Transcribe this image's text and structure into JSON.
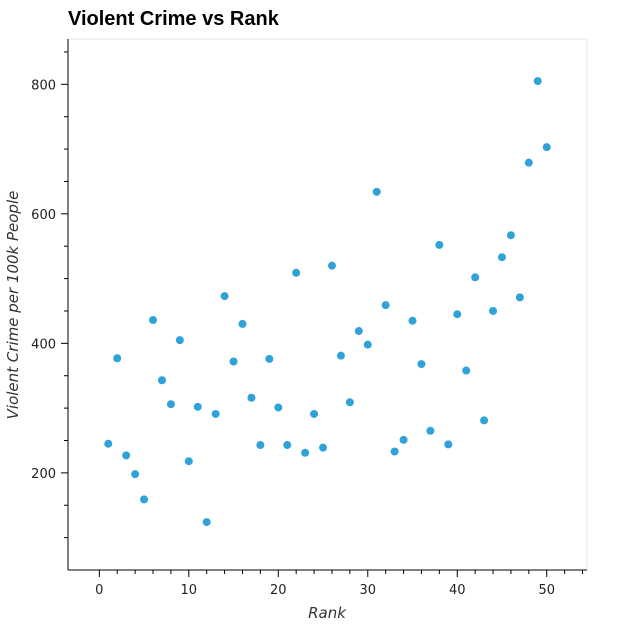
{
  "chart_data": {
    "type": "scatter",
    "title": "Violent Crime vs Rank",
    "xlabel": "Rank",
    "ylabel": "Violent Crime per 100k People",
    "xlim": [
      -3.5,
      54.5
    ],
    "ylim": [
      50,
      870
    ],
    "x_ticks": [
      0,
      10,
      20,
      30,
      40,
      50
    ],
    "y_ticks": [
      200,
      400,
      600,
      800
    ],
    "grid": false,
    "point_color": "#30a2da",
    "points": [
      {
        "x": 1,
        "y": 245
      },
      {
        "x": 2,
        "y": 377
      },
      {
        "x": 3,
        "y": 227
      },
      {
        "x": 4,
        "y": 198
      },
      {
        "x": 5,
        "y": 159
      },
      {
        "x": 6,
        "y": 436
      },
      {
        "x": 7,
        "y": 343
      },
      {
        "x": 8,
        "y": 306
      },
      {
        "x": 9,
        "y": 405
      },
      {
        "x": 10,
        "y": 218
      },
      {
        "x": 11,
        "y": 302
      },
      {
        "x": 12,
        "y": 124
      },
      {
        "x": 13,
        "y": 291
      },
      {
        "x": 14,
        "y": 473
      },
      {
        "x": 15,
        "y": 372
      },
      {
        "x": 16,
        "y": 430
      },
      {
        "x": 17,
        "y": 316
      },
      {
        "x": 18,
        "y": 243
      },
      {
        "x": 19,
        "y": 376
      },
      {
        "x": 20,
        "y": 301
      },
      {
        "x": 21,
        "y": 243
      },
      {
        "x": 22,
        "y": 509
      },
      {
        "x": 23,
        "y": 231
      },
      {
        "x": 24,
        "y": 291
      },
      {
        "x": 25,
        "y": 239
      },
      {
        "x": 26,
        "y": 520
      },
      {
        "x": 27,
        "y": 381
      },
      {
        "x": 28,
        "y": 309
      },
      {
        "x": 29,
        "y": 419
      },
      {
        "x": 30,
        "y": 398
      },
      {
        "x": 31,
        "y": 634
      },
      {
        "x": 32,
        "y": 459
      },
      {
        "x": 33,
        "y": 233
      },
      {
        "x": 34,
        "y": 251
      },
      {
        "x": 35,
        "y": 435
      },
      {
        "x": 36,
        "y": 368
      },
      {
        "x": 37,
        "y": 265
      },
      {
        "x": 38,
        "y": 552
      },
      {
        "x": 39,
        "y": 244
      },
      {
        "x": 40,
        "y": 445
      },
      {
        "x": 41,
        "y": 358
      },
      {
        "x": 42,
        "y": 502
      },
      {
        "x": 43,
        "y": 281
      },
      {
        "x": 44,
        "y": 450
      },
      {
        "x": 45,
        "y": 533
      },
      {
        "x": 46,
        "y": 567
      },
      {
        "x": 47,
        "y": 471
      },
      {
        "x": 48,
        "y": 679
      },
      {
        "x": 49,
        "y": 805
      },
      {
        "x": 50,
        "y": 703
      }
    ]
  }
}
